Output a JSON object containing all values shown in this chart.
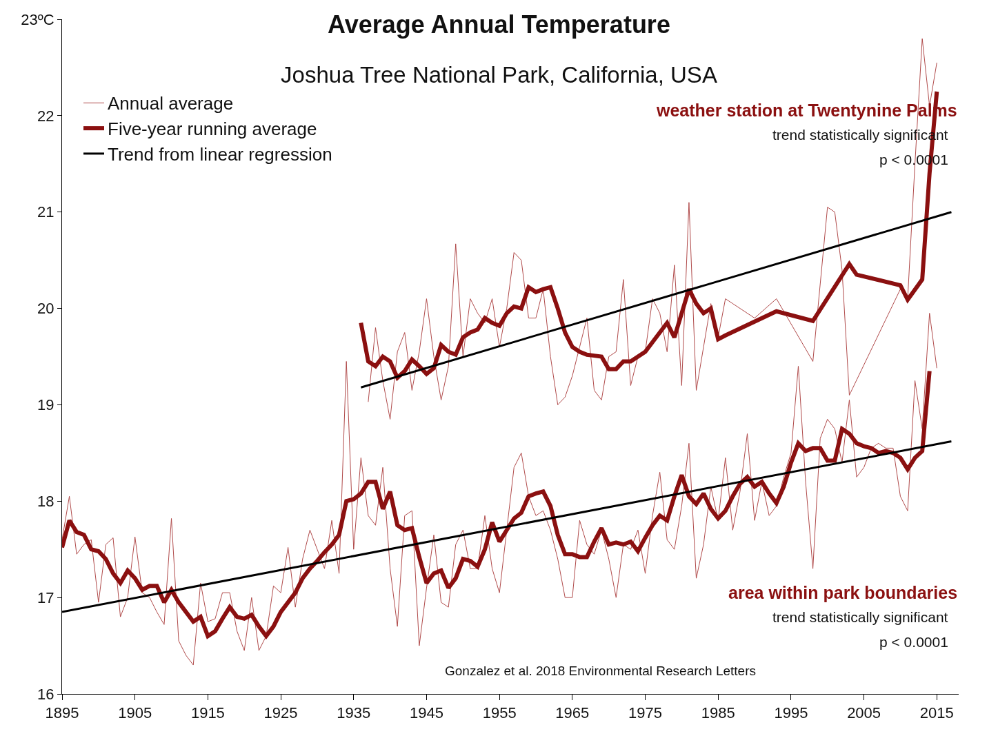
{
  "chart_data": {
    "type": "line",
    "title": "Average Annual Temperature",
    "subtitle": "Joshua Tree National Park, California, USA",
    "xlim": [
      1895,
      2018
    ],
    "xticks": [
      1895,
      1905,
      1915,
      1925,
      1935,
      1945,
      1955,
      1965,
      1975,
      1985,
      1995,
      2005,
      2015
    ],
    "ylim": [
      16,
      23
    ],
    "yticks": [
      16,
      17,
      18,
      19,
      20,
      21,
      {
        "value": 23,
        "label": "23ºC"
      },
      22
    ],
    "grid": false,
    "legend": "top left",
    "marker": "none",
    "line_style": "solid",
    "series": [
      {
        "name": "Annual average",
        "color": "#b04a4a",
        "x": [
          1895,
          1896,
          1897,
          1898,
          1899,
          1900,
          1901,
          1902,
          1903,
          1904,
          1905,
          1906,
          1907,
          1908,
          1909,
          1910,
          1911,
          1912,
          1913,
          1914,
          1915,
          1916,
          1917,
          1918,
          1919,
          1920,
          1921,
          1922,
          1923,
          1924,
          1925,
          1926,
          1927,
          1928,
          1929,
          1930,
          1931,
          1932,
          1933,
          1934,
          1935,
          1936,
          1937,
          1938,
          1939,
          1940,
          1941,
          1942,
          1943,
          1944,
          1945,
          1946,
          1947,
          1948,
          1949,
          1950,
          1951,
          1952,
          1953,
          1954,
          1955,
          1956,
          1957,
          1958,
          1959,
          1960,
          1961,
          1962,
          1963,
          1964,
          1965,
          1966,
          1967,
          1968,
          1969,
          1970,
          1971,
          1972,
          1973,
          1974,
          1975,
          1976,
          1977,
          1978,
          1979,
          1980,
          1981,
          1982,
          1983,
          1984,
          1985,
          1986,
          1987,
          1988,
          1989,
          1990,
          1991,
          1992,
          1993,
          1994,
          1995,
          1996,
          1997,
          1998,
          1999,
          2000,
          2001,
          2002,
          2003,
          2004,
          2005,
          2006,
          2007,
          2008,
          2009,
          2010,
          2011,
          2012,
          2013,
          2014,
          2015
        ],
        "values": [
          17.6,
          18.05,
          17.45,
          17.55,
          17.6,
          16.95,
          17.55,
          17.62,
          16.8,
          17.0,
          17.63,
          17.05,
          17.0,
          16.85,
          16.72,
          17.82,
          16.55,
          16.4,
          16.3,
          17.15,
          16.75,
          16.78,
          17.05,
          17.05,
          16.65,
          16.45,
          17.0,
          16.45,
          16.6,
          17.12,
          17.05,
          17.52,
          16.9,
          17.4,
          17.7,
          17.5,
          17.3,
          17.8,
          17.25,
          19.45,
          17.5,
          18.45,
          17.85,
          17.75,
          18.35,
          17.3,
          16.7,
          17.85,
          17.9,
          16.5,
          17.1,
          17.65,
          16.95,
          16.9,
          17.55,
          17.7,
          17.3,
          17.3,
          17.85,
          17.3,
          17.05,
          17.7,
          18.35,
          18.5,
          18.05,
          17.85,
          17.9,
          17.7,
          17.4,
          17.0,
          17.0,
          17.8,
          17.55,
          17.45,
          17.7,
          17.4,
          17.0,
          17.55,
          17.5,
          17.7,
          17.25,
          17.85,
          18.3,
          17.6,
          17.5,
          17.95,
          18.6,
          17.2,
          17.55,
          18.15,
          17.8,
          18.45,
          17.7,
          18.1,
          18.7,
          17.8,
          18.2,
          17.85,
          17.95,
          18.25,
          18.5,
          19.4,
          18.2,
          17.3,
          18.65,
          18.85,
          18.75,
          18.4,
          19.05,
          18.25,
          18.35,
          18.55,
          18.6,
          18.55,
          18.55,
          18.05,
          17.9,
          19.25,
          18.75,
          19.95,
          19.38
        ]
      },
      {
        "name": "Five-year running average",
        "color": "#8b1010",
        "x": [
          1895,
          1896,
          1897,
          1898,
          1899,
          1900,
          1901,
          1902,
          1903,
          1904,
          1905,
          1906,
          1907,
          1908,
          1909,
          1910,
          1911,
          1912,
          1913,
          1914,
          1915,
          1916,
          1917,
          1918,
          1919,
          1920,
          1921,
          1922,
          1923,
          1924,
          1925,
          1926,
          1927,
          1928,
          1929,
          1930,
          1931,
          1932,
          1933,
          1934,
          1935,
          1936,
          1937,
          1938,
          1939,
          1940,
          1941,
          1942,
          1943,
          1944,
          1945,
          1946,
          1947,
          1948,
          1949,
          1950,
          1951,
          1952,
          1953,
          1954,
          1955,
          1956,
          1957,
          1958,
          1959,
          1960,
          1961,
          1962,
          1963,
          1964,
          1965,
          1966,
          1967,
          1968,
          1969,
          1970,
          1971,
          1972,
          1973,
          1974,
          1975,
          1976,
          1977,
          1978,
          1979,
          1980,
          1981,
          1982,
          1983,
          1984,
          1985,
          1986,
          1987,
          1988,
          1989,
          1990,
          1991,
          1992,
          1993,
          1994,
          1995,
          1996,
          1997,
          1998,
          1999,
          2000,
          2001,
          2002,
          2003,
          2004,
          2005,
          2006,
          2007,
          2008,
          2009,
          2010,
          2011,
          2012,
          2013,
          2014
        ],
        "values": [
          17.52,
          17.8,
          17.68,
          17.65,
          17.5,
          17.48,
          17.4,
          17.25,
          17.15,
          17.28,
          17.2,
          17.08,
          17.12,
          17.12,
          16.95,
          17.08,
          16.95,
          16.85,
          16.75,
          16.8,
          16.6,
          16.65,
          16.78,
          16.9,
          16.8,
          16.78,
          16.82,
          16.7,
          16.6,
          16.7,
          16.85,
          16.95,
          17.05,
          17.2,
          17.3,
          17.38,
          17.47,
          17.55,
          17.65,
          18.0,
          18.02,
          18.08,
          18.2,
          18.2,
          17.92,
          18.1,
          17.75,
          17.7,
          17.72,
          17.42,
          17.15,
          17.25,
          17.28,
          17.1,
          17.2,
          17.4,
          17.38,
          17.32,
          17.5,
          17.78,
          17.58,
          17.7,
          17.82,
          17.88,
          18.05,
          18.08,
          18.1,
          17.95,
          17.65,
          17.45,
          17.45,
          17.42,
          17.42,
          17.58,
          17.72,
          17.55,
          17.57,
          17.55,
          17.58,
          17.48,
          17.62,
          17.75,
          17.85,
          17.8,
          18.05,
          18.27,
          18.05,
          17.97,
          18.08,
          17.92,
          17.82,
          17.9,
          18.05,
          18.18,
          18.25,
          18.15,
          18.2,
          18.08,
          17.98,
          18.15,
          18.4,
          18.6,
          18.52,
          18.55,
          18.55,
          18.42,
          18.42,
          18.75,
          18.7,
          18.6,
          18.57,
          18.55,
          18.5,
          18.52,
          18.5,
          18.45,
          18.33,
          18.45,
          18.52,
          19.35
        ]
      },
      {
        "name": "Trend from linear regression",
        "color": "#000000",
        "x": [
          1895,
          2017
        ],
        "values": [
          16.85,
          18.62
        ]
      },
      {
        "color": "#b04a4a",
        "x": [
          1937,
          1938,
          1939,
          1940,
          1941,
          1942,
          1943,
          1944,
          1945,
          1946,
          1947,
          1948,
          1949,
          1950,
          1951,
          1952,
          1953,
          1954,
          1955,
          1956,
          1957,
          1958,
          1959,
          1960,
          1961,
          1962,
          1963,
          1964,
          1965,
          1966,
          1967,
          1968,
          1969,
          1970,
          1971,
          1972,
          1973,
          1974,
          1975,
          1976,
          1977,
          1978,
          1979,
          1980,
          1981,
          1982,
          1983,
          1984,
          1985,
          1986,
          1987,
          1990,
          1993,
          1998,
          2000,
          2001,
          2002,
          2003,
          2010,
          2011,
          2012,
          2013,
          2014,
          2015
        ],
        "values": [
          19.03,
          19.8,
          19.25,
          18.85,
          19.55,
          19.75,
          19.15,
          19.55,
          20.1,
          19.5,
          19.05,
          19.4,
          20.67,
          19.5,
          20.1,
          19.95,
          19.85,
          20.1,
          19.6,
          20.0,
          20.58,
          20.5,
          19.9,
          19.9,
          20.2,
          19.5,
          19.0,
          19.08,
          19.3,
          19.6,
          19.9,
          19.15,
          19.05,
          19.5,
          19.55,
          20.3,
          19.2,
          19.5,
          19.55,
          20.1,
          19.95,
          19.55,
          20.45,
          19.2,
          21.1,
          19.15,
          19.6,
          20.05,
          19.7,
          20.1,
          20.05,
          19.9,
          20.1,
          19.45,
          21.05,
          21.0,
          20.4,
          19.1,
          20.2,
          20.1,
          21.5,
          22.8,
          22.1,
          22.55
        ]
      },
      {
        "color": "#8b1010",
        "x": [
          1936,
          1937,
          1938,
          1939,
          1940,
          1941,
          1942,
          1943,
          1944,
          1945,
          1946,
          1947,
          1948,
          1949,
          1950,
          1951,
          1952,
          1953,
          1954,
          1955,
          1956,
          1957,
          1958,
          1959,
          1960,
          1961,
          1962,
          1963,
          1964,
          1965,
          1966,
          1967,
          1968,
          1969,
          1970,
          1971,
          1972,
          1973,
          1974,
          1975,
          1976,
          1977,
          1978,
          1979,
          1980,
          1981,
          1982,
          1983,
          1984,
          1985,
          1986,
          1993,
          1998,
          2003,
          2004,
          2010,
          2011,
          2013,
          2014,
          2015
        ],
        "values": [
          19.85,
          19.45,
          19.4,
          19.5,
          19.45,
          19.28,
          19.35,
          19.47,
          19.4,
          19.32,
          19.38,
          19.62,
          19.55,
          19.52,
          19.7,
          19.75,
          19.78,
          19.9,
          19.85,
          19.82,
          19.95,
          20.02,
          20.0,
          20.22,
          20.17,
          20.2,
          20.22,
          20.0,
          19.75,
          19.6,
          19.55,
          19.52,
          19.51,
          19.5,
          19.37,
          19.37,
          19.45,
          19.45,
          19.5,
          19.55,
          19.65,
          19.75,
          19.85,
          19.7,
          19.95,
          20.2,
          20.05,
          19.95,
          20.0,
          19.68,
          19.72,
          19.97,
          19.87,
          20.46,
          20.35,
          20.24,
          20.09,
          20.3,
          21.4,
          22.25
        ]
      },
      {
        "color": "#000000",
        "x": [
          1936,
          2017
        ],
        "values": [
          19.18,
          21.0
        ]
      }
    ],
    "annotations": [
      "weather station at Twentynine Palms",
      "trend statistically significant",
      "p < 0.0001",
      "area within park boundaries",
      "trend statistically significant",
      "p < 0.0001",
      "Gonzalez et al. 2018 Environmental Research Letters"
    ]
  }
}
